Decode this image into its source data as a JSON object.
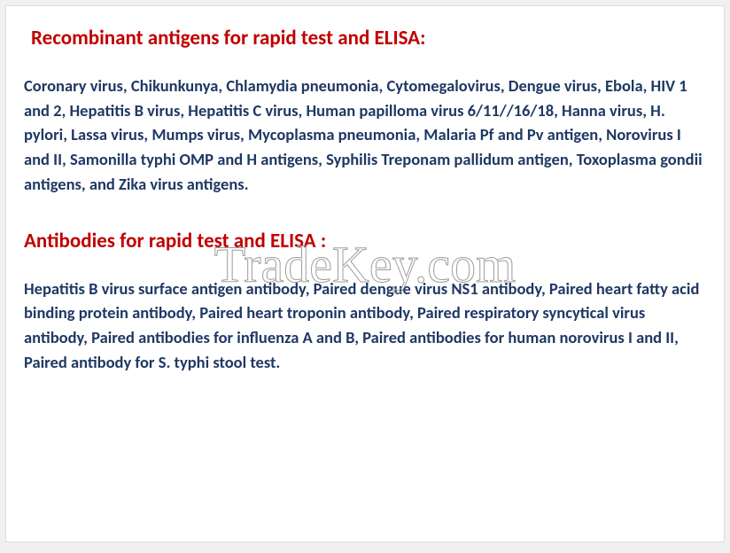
{
  "colors": {
    "heading": "#c00000",
    "body": "#1f3864",
    "background": "#ffffff",
    "page_bg": "#f0f0f0",
    "watermark_stroke": "#9e9e9e"
  },
  "typography": {
    "heading_fontsize": 23,
    "body_fontsize": 18.5,
    "heading_weight": "bold",
    "body_weight": "bold",
    "font_family": "Calibri, Arial, sans-serif",
    "watermark_fontsize": 58,
    "watermark_font": "Georgia, serif"
  },
  "section1": {
    "heading": "Recombinant  antigens for rapid test and ELISA:",
    "body": "Coronary virus,  Chikunkunya,  Chlamydia pneumonia,  Cytomegalovirus, Dengue virus,  Ebola, HIV 1 and 2, Hepatitis B virus, Hepatitis C virus,  Human  papilloma virus 6/11//16/18,  Hanna virus, H. pylori,  Lassa virus,  Mumps virus, Mycoplasma pneumonia,  Malaria Pf and Pv antigen,  Norovirus I and II, Samonilla typhi OMP and H antigens,  Syphilis Treponam pallidum antigen, Toxoplasma gondii antigens, and Zika virus antigens."
  },
  "section2": {
    "heading": "Antibodies for rapid test and ELISA :",
    "body": "Hepatitis B virus surface antigen antibody, Paired dengue virus NS1  antibody, Paired  heart fatty acid binding protein antibody,  Paired heart  troponin antibody, Paired respiratory syncytical virus antibody, Paired antibodies for influenza A and B, Paired antibodies for human norovirus I  and II, Paired antibody for S. typhi stool test."
  },
  "watermark": {
    "text": "TradeKey.com"
  }
}
